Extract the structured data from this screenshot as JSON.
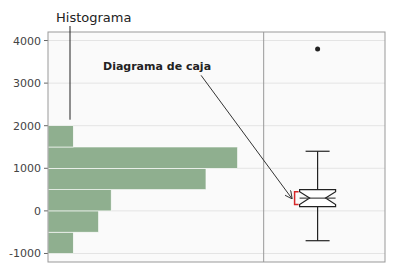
{
  "chart_data": {
    "type": "histogram",
    "title": "Histograma",
    "orientation": "horizontal",
    "bins": [
      -1000,
      -500,
      0,
      500,
      1000,
      1500,
      2000
    ],
    "counts": [
      200,
      400,
      500,
      1250,
      1500,
      200
    ],
    "color": "#8faf8f",
    "xlim": [
      0,
      1600
    ],
    "ylim": [
      -1200,
      4200
    ],
    "yticks": [
      -1000,
      0,
      1000,
      2000,
      3000,
      4000
    ],
    "tick_labels": "y",
    "box": {
      "whisker_low": -700,
      "q1": 100,
      "median": 300,
      "q3": 500,
      "whisker_high": 1400,
      "notch_low": 150,
      "notch_high": 450,
      "outliers": [
        3800
      ]
    },
    "annotation": "Diagrama de caja"
  }
}
